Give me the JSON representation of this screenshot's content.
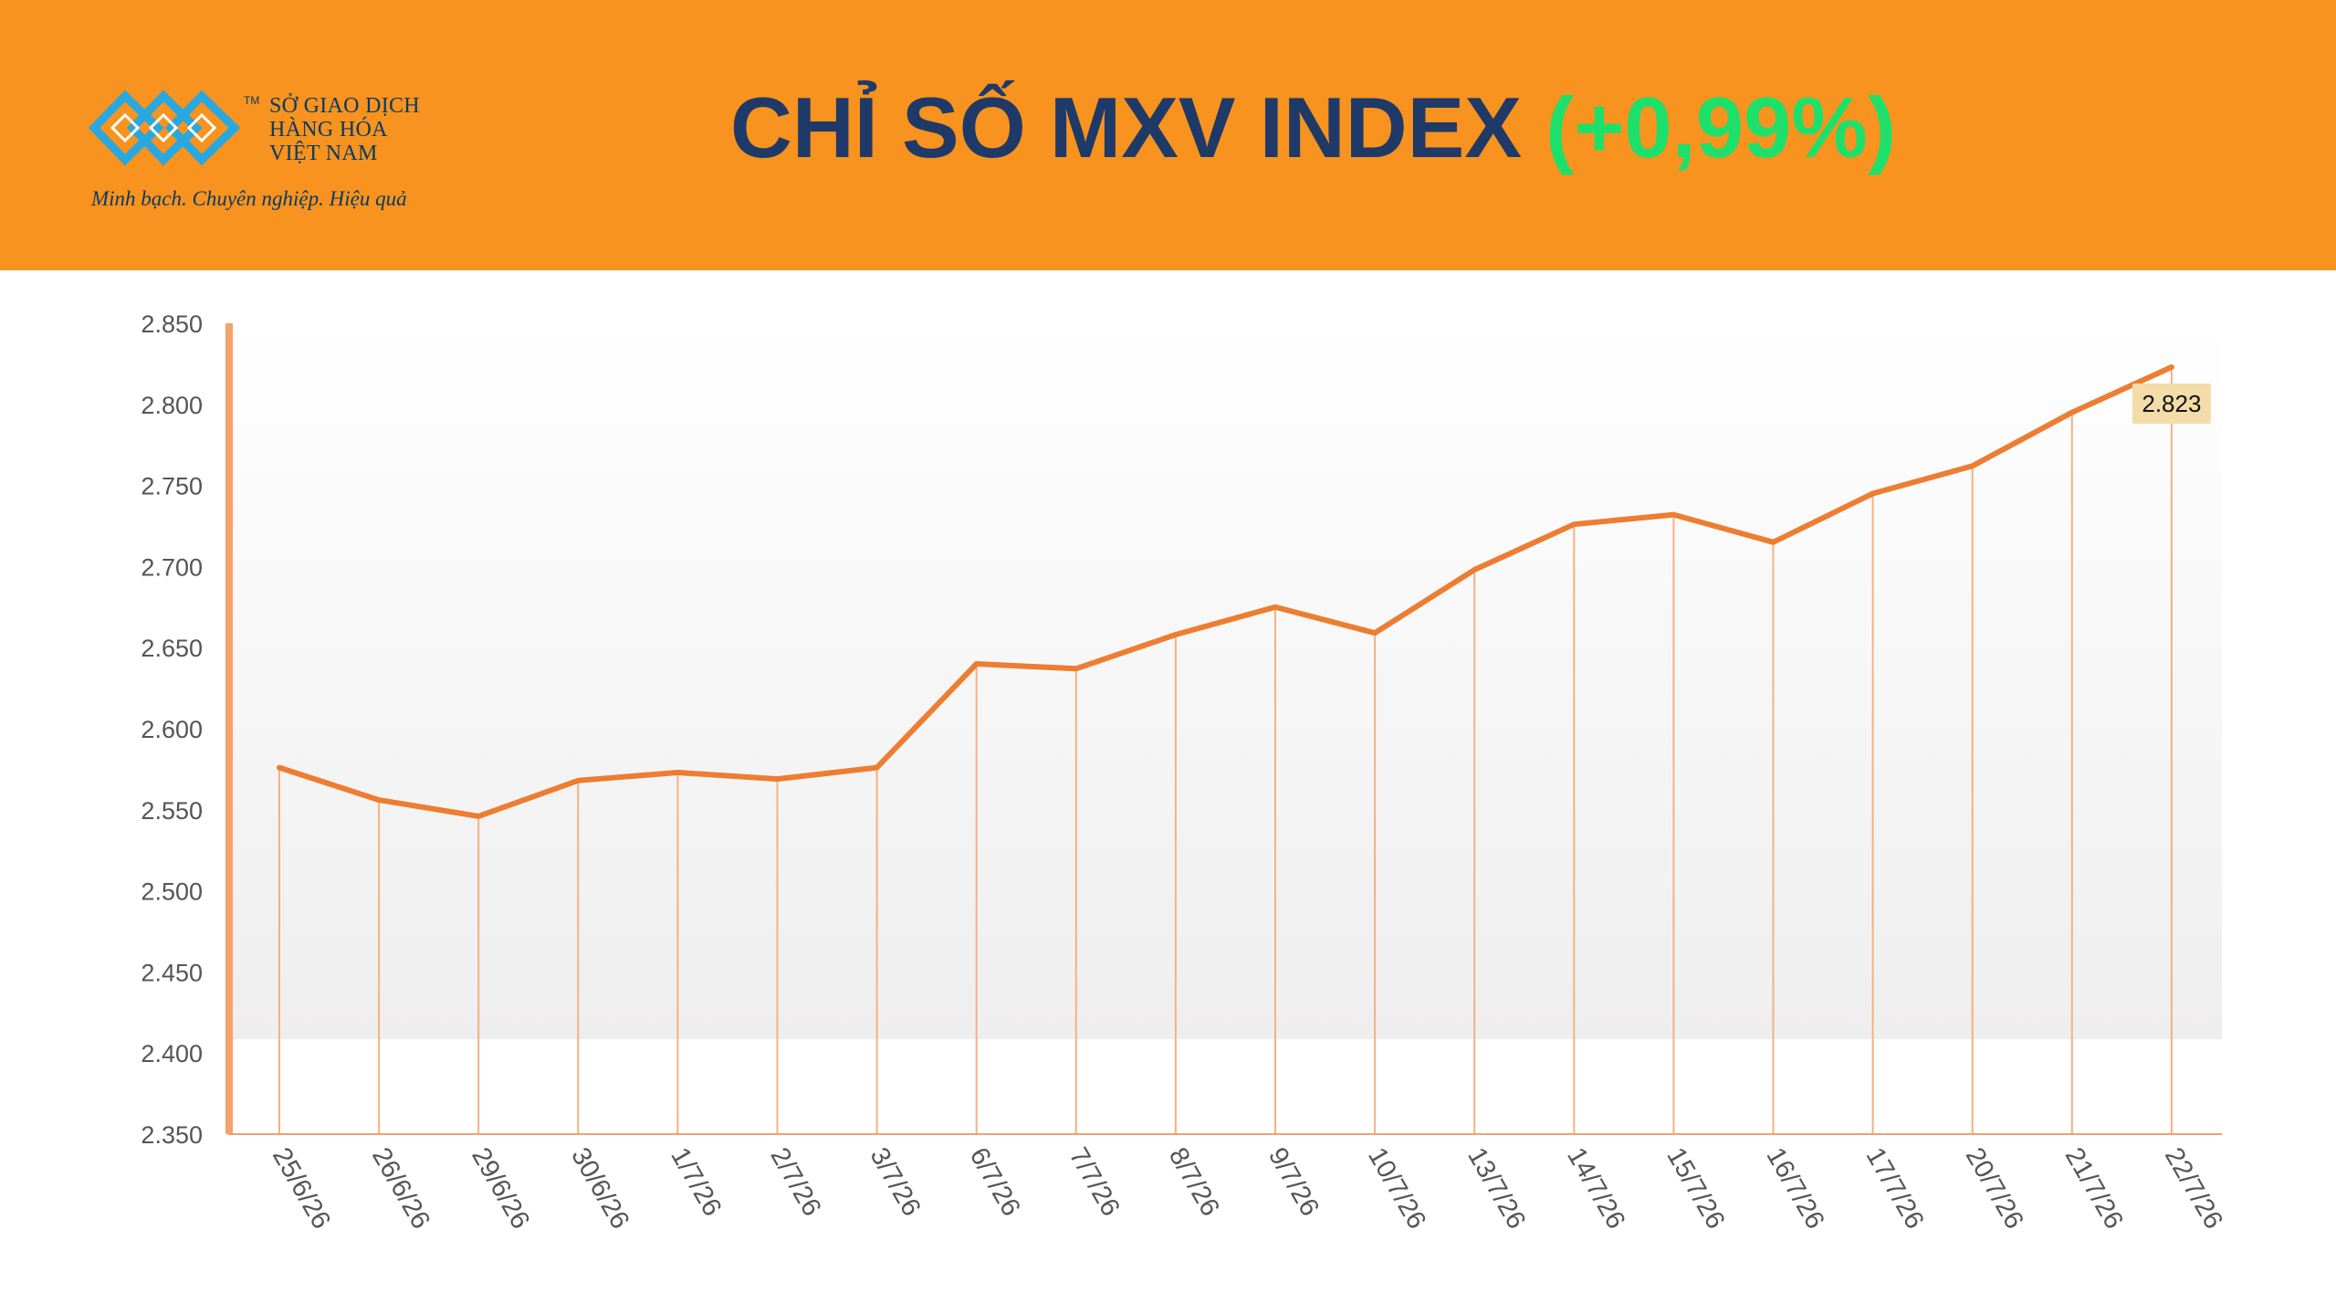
{
  "header": {
    "logo": {
      "icon": "mxv-logo-icon",
      "tm": "TM",
      "name_lines": [
        "SỞ GIAO DỊCH",
        "HÀNG HÓA",
        "VIỆT NAM"
      ],
      "slogan": "Minh bạch. Chuyên nghiệp. Hiệu quả"
    },
    "title": "CHỈ SỐ MXV INDEX",
    "change": "(+0,99%)"
  },
  "colors": {
    "header_bg": "#f7931e",
    "title": "#1f3a68",
    "change": "#1de06b",
    "line": "#ed7d31",
    "drop_line": "#f4b183",
    "label_bg": "#f3dca8"
  },
  "chart_data": {
    "type": "line",
    "title": "",
    "xlabel": "",
    "ylabel": "",
    "ylim": [
      2350,
      2850
    ],
    "y_ticks": [
      "2.850",
      "2.800",
      "2.750",
      "2.700",
      "2.650",
      "2.600",
      "2.550",
      "2.500",
      "2.450",
      "2.400",
      "2.350"
    ],
    "y_tick_values": [
      2850,
      2800,
      2750,
      2700,
      2650,
      2600,
      2550,
      2500,
      2450,
      2400,
      2350
    ],
    "categories": [
      "25/6/26",
      "26/6/26",
      "29/6/26",
      "30/6/26",
      "1/7/26",
      "2/7/26",
      "3/7/26",
      "6/7/26",
      "7/7/26",
      "8/7/26",
      "9/7/26",
      "10/7/26",
      "13/7/26",
      "14/7/26",
      "15/7/26",
      "16/7/26",
      "17/7/26",
      "20/7/26",
      "21/7/26",
      "22/7/26"
    ],
    "series": [
      {
        "values": [
          2576,
          2556,
          2546,
          2568,
          2573,
          2569,
          2576,
          2640,
          2637,
          2658,
          2675,
          2659,
          2698,
          2726,
          2732,
          2715,
          2745,
          2762,
          2795,
          2823
        ]
      }
    ],
    "data_label": {
      "index": 19,
      "text": "2.823"
    },
    "grid": false,
    "drop_lines": true,
    "legend": "none"
  }
}
